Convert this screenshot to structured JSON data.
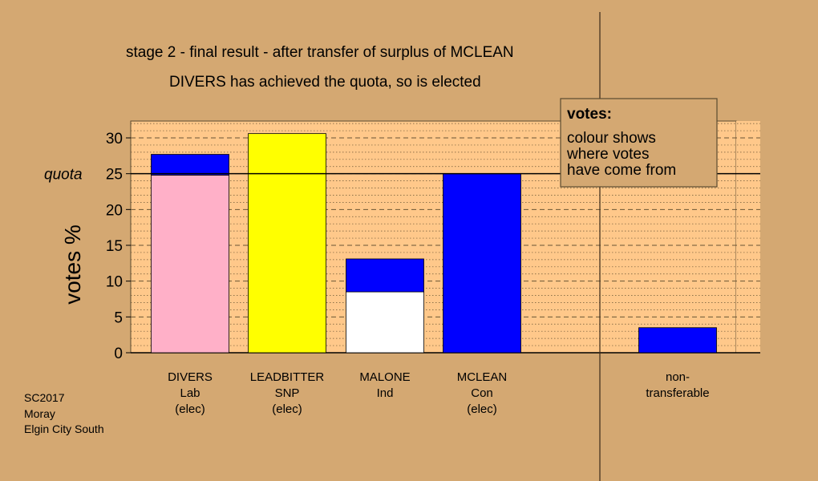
{
  "chart_data": {
    "type": "bar",
    "title": "stage 2 - final result - after transfer of surplus of MCLEAN",
    "subtitle": "DIVERS has achieved the quota, so is elected",
    "ylabel": "votes %",
    "ylim": [
      0,
      32
    ],
    "yticks": [
      0,
      5,
      10,
      15,
      20,
      25,
      30
    ],
    "quota": {
      "label": "quota",
      "value": 25
    },
    "grid": true,
    "categories": [
      {
        "lines": [
          "DIVERS",
          "Lab",
          "(elec)"
        ]
      },
      {
        "lines": [
          "LEADBITTER",
          "SNP",
          "(elec)"
        ]
      },
      {
        "lines": [
          "MALONE",
          "Ind",
          ""
        ]
      },
      {
        "lines": [
          "MCLEAN",
          "Con",
          "(elec)"
        ]
      },
      {
        "lines": [
          "non-",
          "transferable",
          ""
        ]
      }
    ],
    "bars": [
      {
        "segments": [
          {
            "value": 24.8,
            "color": "#ffb0c8"
          },
          {
            "value": 2.9,
            "color": "#0000ff"
          }
        ]
      },
      {
        "segments": [
          {
            "value": 30.6,
            "color": "#ffff00"
          }
        ]
      },
      {
        "segments": [
          {
            "value": 8.5,
            "color": "#ffffff"
          },
          {
            "value": 4.6,
            "color": "#0000ff"
          }
        ]
      },
      {
        "segments": [
          {
            "value": 25.0,
            "color": "#0000ff"
          }
        ]
      },
      {
        "segments": [
          {
            "value": 3.5,
            "color": "#0000ff"
          }
        ]
      }
    ],
    "legend": {
      "title": "votes:",
      "lines": [
        "colour shows",
        "where votes",
        "have come from"
      ],
      "placement": "top-right"
    }
  },
  "footer": {
    "lines": [
      "SC2017",
      "Moray",
      "Elgin City South"
    ]
  },
  "colors": {
    "background": "#d4a872",
    "plot_background": "#ffc88a",
    "legend_background": "#d4a872"
  }
}
